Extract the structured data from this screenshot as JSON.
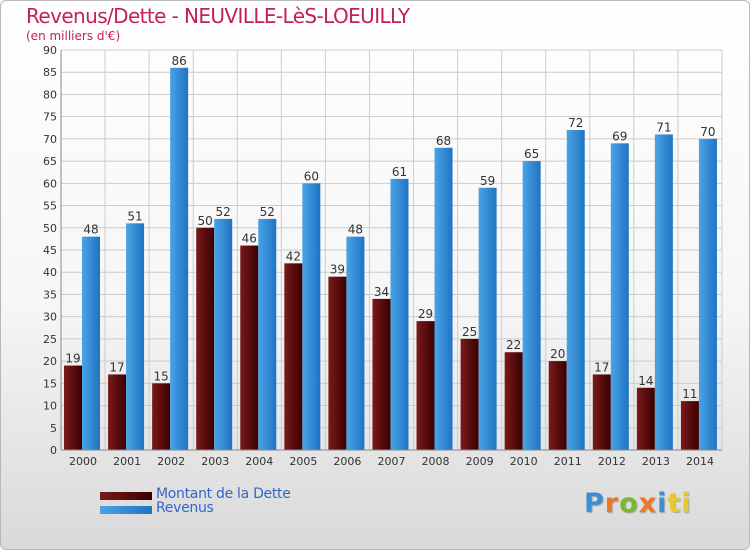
{
  "title": "Revenus/Dette - NEUVILLE-LèS-LOEUILLY",
  "subtitle": "(en milliers d'€)",
  "colors": {
    "dette": "#7a1a1a",
    "dette_dark": "#3a0000",
    "revenus": "#4aa3e6",
    "revenus_dark": "#1f74c2",
    "grid": "#cccccc",
    "axis_text": "#333333",
    "title": "#c41e5e",
    "legend_text": "#3366cc"
  },
  "chart_data": {
    "type": "bar",
    "title": "Revenus/Dette - NEUVILLE-LèS-LOEUILLY",
    "ylabel": "(en milliers d'€)",
    "xlabel": "",
    "ylim": [
      0,
      90
    ],
    "ytick_step": 5,
    "grid": true,
    "categories": [
      "2000",
      "2001",
      "2002",
      "2003",
      "2004",
      "2005",
      "2006",
      "2007",
      "2008",
      "2009",
      "2010",
      "2011",
      "2012",
      "2013",
      "2014"
    ],
    "series": [
      {
        "name": "Montant de la Dette",
        "values": [
          19,
          17,
          15,
          50,
          46,
          42,
          39,
          34,
          29,
          25,
          22,
          20,
          17,
          14,
          11
        ]
      },
      {
        "name": "Revenus",
        "values": [
          48,
          51,
          86,
          52,
          52,
          60,
          48,
          61,
          68,
          59,
          65,
          72,
          69,
          71,
          70
        ]
      }
    ]
  },
  "legend": {
    "dette_label": "Montant de la Dette",
    "revenus_label": "Revenus"
  },
  "logo": {
    "letters": [
      "P",
      "r",
      "o",
      "x",
      "i",
      "ti"
    ]
  }
}
